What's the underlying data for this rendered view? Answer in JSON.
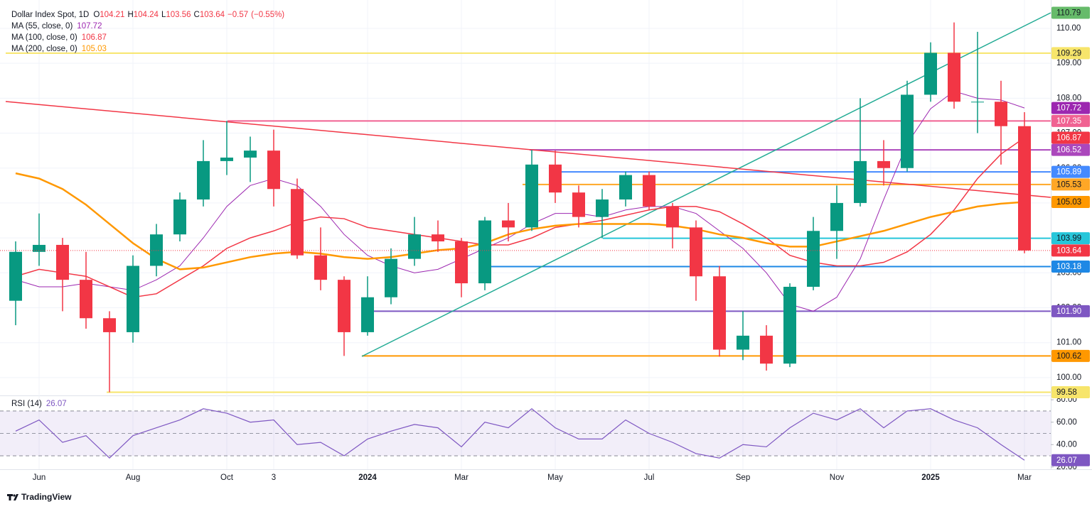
{
  "chart_data": {
    "type": "candlestick",
    "title": "Dollar Index Spot, 1D",
    "quote": [
      {
        "label": "O",
        "value": 104.21
      },
      {
        "label": "H",
        "value": 104.24
      },
      {
        "label": "L",
        "value": 103.56
      },
      {
        "label": "C",
        "value": 103.64
      }
    ],
    "change": {
      "value": -0.57,
      "label": "−0.57"
    },
    "change_percent": {
      "value": -0.55,
      "label": "(−0.55%)"
    },
    "categories": [
      null,
      "Jun",
      null,
      null,
      null,
      "Aug",
      null,
      null,
      null,
      "Oct",
      null,
      "3",
      null,
      null,
      null,
      "2024",
      null,
      null,
      null,
      "Mar",
      null,
      null,
      null,
      "May",
      null,
      null,
      null,
      "Jul",
      null,
      null,
      null,
      "Sep",
      null,
      null,
      null,
      "Nov",
      null,
      null,
      null,
      "2025",
      null,
      null,
      null,
      "Mar"
    ],
    "candles": {
      "open": [
        102.2,
        103.6,
        103.8,
        102.8,
        101.7,
        101.3,
        103.2,
        104.1,
        105.1,
        106.2,
        106.3,
        106.5,
        105.4,
        103.5,
        102.8,
        101.3,
        102.3,
        103.4,
        104.1,
        103.9,
        102.7,
        104.5,
        104.3,
        106.1,
        105.3,
        104.6,
        105.1,
        105.8,
        104.9,
        104.3,
        102.9,
        100.8,
        101.2,
        100.4,
        102.6,
        104.2,
        105.0,
        106.2,
        106.0,
        108.1,
        109.3,
        107.9,
        107.9,
        107.2
      ],
      "high": [
        103.9,
        104.7,
        104.0,
        103.6,
        101.9,
        103.5,
        104.4,
        105.3,
        106.8,
        107.35,
        106.9,
        107.1,
        105.7,
        104.3,
        102.9,
        102.9,
        103.7,
        104.6,
        104.5,
        104.0,
        104.6,
        105.0,
        106.52,
        106.5,
        105.5,
        105.4,
        105.9,
        105.9,
        105.0,
        104.5,
        103.2,
        101.9,
        101.5,
        102.7,
        104.6,
        105.5,
        108.0,
        106.8,
        108.5,
        109.6,
        110.17,
        109.9,
        108.5,
        107.6
      ],
      "low": [
        101.5,
        103.2,
        101.9,
        101.4,
        99.58,
        101.0,
        102.9,
        103.9,
        104.9,
        105.8,
        105.6,
        104.9,
        103.4,
        102.5,
        100.62,
        101.2,
        102.1,
        103.2,
        103.6,
        102.3,
        102.5,
        103.9,
        104.2,
        105.0,
        104.3,
        103.99,
        104.9,
        104.8,
        103.7,
        102.2,
        100.6,
        100.5,
        100.2,
        100.3,
        102.5,
        103.4,
        104.9,
        105.5,
        105.9,
        107.9,
        107.7,
        107.0,
        106.1,
        103.56
      ],
      "close": [
        103.6,
        103.8,
        102.8,
        101.7,
        101.3,
        103.2,
        104.1,
        105.1,
        106.2,
        106.3,
        106.5,
        105.4,
        103.5,
        102.8,
        101.3,
        102.3,
        103.4,
        104.1,
        103.9,
        102.7,
        104.5,
        104.3,
        106.1,
        105.3,
        104.6,
        105.1,
        105.8,
        104.9,
        104.3,
        102.9,
        100.8,
        101.2,
        100.4,
        102.6,
        104.2,
        105.0,
        106.2,
        106.0,
        108.1,
        109.3,
        107.9,
        107.9,
        107.2,
        103.64
      ]
    },
    "up_color": "#089981",
    "down_color": "#f23645",
    "series": [
      {
        "name": "MA (55, close, 0)",
        "color": "#9c27b0",
        "values": [
          102.8,
          102.6,
          102.6,
          102.7,
          102.6,
          102.5,
          102.8,
          103.2,
          104.0,
          104.9,
          105.5,
          105.7,
          105.5,
          104.9,
          104.1,
          103.5,
          103.2,
          103.0,
          103.1,
          103.4,
          103.7,
          104.0,
          104.4,
          104.7,
          104.7,
          104.6,
          104.8,
          104.9,
          104.9,
          104.7,
          104.2,
          103.7,
          103.0,
          102.1,
          101.9,
          102.3,
          103.4,
          105.1,
          106.7,
          107.7,
          108.2,
          108.0,
          107.95,
          107.72
        ]
      },
      {
        "name": "MA (100, close, 0)",
        "color": "#f23645",
        "values": [
          102.9,
          103.1,
          103.0,
          102.9,
          102.6,
          102.3,
          102.4,
          102.8,
          103.2,
          103.7,
          104.0,
          104.2,
          104.45,
          104.6,
          104.55,
          104.3,
          104.2,
          104.1,
          104.0,
          103.9,
          103.8,
          103.8,
          104.0,
          104.3,
          104.4,
          104.5,
          104.65,
          104.8,
          104.9,
          104.9,
          104.75,
          104.4,
          104.0,
          103.5,
          103.3,
          103.2,
          103.2,
          103.3,
          103.6,
          104.1,
          104.8,
          105.7,
          106.4,
          106.87
        ]
      },
      {
        "name": "MA (200, close, 0)",
        "color": "#ff9800",
        "values": [
          105.85,
          105.7,
          105.4,
          104.95,
          104.4,
          103.85,
          103.4,
          103.1,
          103.15,
          103.3,
          103.45,
          103.55,
          103.6,
          103.55,
          103.45,
          103.4,
          103.45,
          103.55,
          103.65,
          103.7,
          103.85,
          104.1,
          104.25,
          104.35,
          104.4,
          104.4,
          104.4,
          104.4,
          104.35,
          104.25,
          104.1,
          104.0,
          103.85,
          103.75,
          103.75,
          103.9,
          104.05,
          104.2,
          104.4,
          104.6,
          104.75,
          104.9,
          104.98,
          105.03
        ]
      }
    ],
    "ylim": [
      99.53,
      110.65
    ],
    "yticks": [
      {
        "value": 100,
        "label": "100.00"
      },
      {
        "value": 101,
        "label": "101.00"
      },
      {
        "value": 102,
        "label": "102.00"
      },
      {
        "value": 103,
        "label": "103.00"
      },
      {
        "value": 104,
        "label": "104.00"
      },
      {
        "value": 105,
        "label": "105.00"
      },
      {
        "value": 106,
        "label": "106.00"
      },
      {
        "value": 107,
        "label": "107.00"
      },
      {
        "value": 108,
        "label": "108.00"
      },
      {
        "value": 109,
        "label": "109.00"
      },
      {
        "value": 110,
        "label": "110.00"
      }
    ],
    "grid": true,
    "levels": [
      {
        "value": 110.79,
        "color": "#66bb6a",
        "text_color": "#131722"
      },
      {
        "value": 109.29,
        "color": "#f7e56b",
        "text_color": "#131722"
      },
      {
        "value": 107.35,
        "color": "#f06292",
        "text_color": "#ffffff"
      },
      {
        "value": 106.52,
        "color": "#ab47bc",
        "text_color": "#ffffff"
      },
      {
        "value": 105.89,
        "color": "#448aff",
        "text_color": "#ffffff"
      },
      {
        "value": 105.53,
        "color": "#ffa726",
        "text_color": "#131722"
      },
      {
        "value": 103.99,
        "color": "#26c6da",
        "text_color": "#131722"
      },
      {
        "value": 103.18,
        "color": "#1e88e5",
        "text_color": "#ffffff"
      },
      {
        "value": 101.9,
        "label": "101.90",
        "color": "#7e57c2",
        "text_color": "#ffffff"
      },
      {
        "value": 100.62,
        "color": "#ff9800",
        "text_color": "#131722"
      },
      {
        "value": 99.58,
        "color": "#f7e56b",
        "text_color": "#131722"
      }
    ],
    "rsi": {
      "name": "RSI (14)",
      "color": "#7e57c2",
      "values": [
        52,
        62,
        42,
        48,
        28,
        48,
        55,
        62,
        72,
        68,
        60,
        62,
        40,
        42,
        30,
        45,
        52,
        58,
        55,
        38,
        60,
        55,
        72,
        55,
        45,
        45,
        62,
        50,
        42,
        32,
        28,
        40,
        38,
        55,
        68,
        62,
        72,
        55,
        70,
        72,
        62,
        55,
        40,
        26.07
      ],
      "ylim": [
        18,
        82
      ],
      "yticks": [
        {
          "value": 20,
          "label": "20.00"
        },
        {
          "value": 40,
          "label": "40.00"
        },
        {
          "value": 60,
          "label": "60.00"
        },
        {
          "value": 80,
          "label": "80.00"
        }
      ],
      "band": [
        30,
        70
      ],
      "midline": 50
    }
  },
  "brand": "TradingView"
}
